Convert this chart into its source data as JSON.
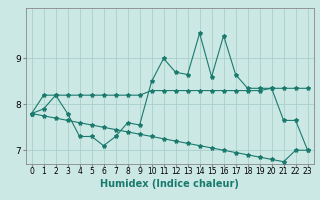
{
  "title": "",
  "xlabel": "Humidex (Indice chaleur)",
  "ylabel": "",
  "bg_color": "#cce8e4",
  "grid_color": "#aacfcc",
  "line_color": "#1a7a6e",
  "x": [
    0,
    1,
    2,
    3,
    4,
    5,
    6,
    7,
    8,
    9,
    10,
    11,
    12,
    13,
    14,
    15,
    16,
    17,
    18,
    19,
    20,
    21,
    22,
    23
  ],
  "line1": [
    7.8,
    7.9,
    8.2,
    7.8,
    7.3,
    7.3,
    7.1,
    7.3,
    7.6,
    7.55,
    8.5,
    9.0,
    8.7,
    8.65,
    9.55,
    8.6,
    9.5,
    8.65,
    8.35,
    8.35,
    8.35,
    7.65,
    7.65,
    7.0
  ],
  "line2": [
    7.8,
    8.2,
    8.2,
    8.2,
    8.2,
    8.2,
    8.2,
    8.2,
    8.2,
    8.2,
    8.3,
    8.3,
    8.3,
    8.3,
    8.3,
    8.3,
    8.3,
    8.3,
    8.3,
    8.3,
    8.35,
    8.35,
    8.35,
    8.35
  ],
  "line3": [
    7.8,
    7.75,
    7.7,
    7.65,
    7.6,
    7.55,
    7.5,
    7.45,
    7.4,
    7.35,
    7.3,
    7.25,
    7.2,
    7.15,
    7.1,
    7.05,
    7.0,
    6.95,
    6.9,
    6.85,
    6.8,
    6.75,
    7.0,
    7.0
  ],
  "ylim": [
    6.7,
    10.1
  ],
  "xlim": [
    -0.5,
    23.5
  ],
  "yticks": [
    7,
    8,
    9
  ],
  "xticks": [
    0,
    1,
    2,
    3,
    4,
    5,
    6,
    7,
    8,
    9,
    10,
    11,
    12,
    13,
    14,
    15,
    16,
    17,
    18,
    19,
    20,
    21,
    22,
    23
  ],
  "marker": "*",
  "markersize": 3,
  "linewidth": 0.8,
  "tick_fontsize": 6,
  "xlabel_fontsize": 7
}
